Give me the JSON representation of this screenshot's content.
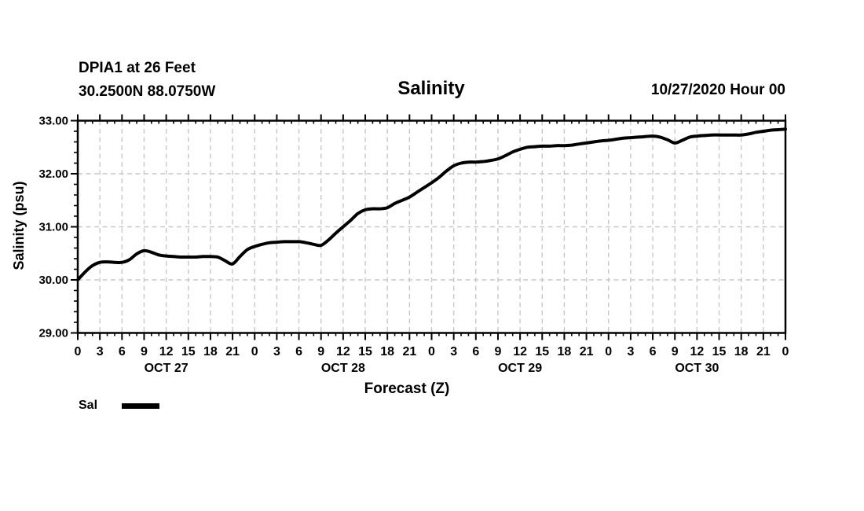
{
  "header": {
    "station_line1": "DPIA1 at 26 Feet",
    "station_line2": "30.2500N 88.0750W",
    "title": "Salinity",
    "datetime": "10/27/2020 Hour 00"
  },
  "legend": {
    "label": "Sal"
  },
  "chart_data": {
    "type": "line",
    "title": "Salinity",
    "xlabel": "Forecast (Z)",
    "ylabel": "Salinity (psu)",
    "ylim": [
      29.0,
      33.0
    ],
    "xlim_hours": [
      0,
      96
    ],
    "grid": "dashed",
    "grid_color": "#c8c8c8",
    "line_color": "#000000",
    "y_ticks": [
      {
        "value": 33.0,
        "label": "33.00"
      },
      {
        "value": 32.0,
        "label": "32.00"
      },
      {
        "value": 31.0,
        "label": "31.00"
      },
      {
        "value": 30.0,
        "label": "30.00"
      },
      {
        "value": 29.0,
        "label": "29.00"
      }
    ],
    "y_minor_step": 0.2,
    "x_major_step_hours": 3,
    "x_minor_step_hours": 1,
    "x_tick_labels": [
      "0",
      "3",
      "6",
      "9",
      "12",
      "15",
      "18",
      "21",
      "0",
      "3",
      "6",
      "9",
      "12",
      "15",
      "18",
      "21",
      "0",
      "3",
      "6",
      "9",
      "12",
      "15",
      "18",
      "21",
      "0",
      "3",
      "6",
      "9",
      "12",
      "15",
      "18",
      "21",
      "0"
    ],
    "day_labels": [
      {
        "label": "OCT 27",
        "hour": 12
      },
      {
        "label": "OCT 28",
        "hour": 36
      },
      {
        "label": "OCT 29",
        "hour": 60
      },
      {
        "label": "OCT 30",
        "hour": 84
      }
    ],
    "series": [
      {
        "name": "Sal",
        "x_start_hour": 0,
        "x_step_hours": 1,
        "values": [
          30.0,
          30.15,
          30.27,
          30.33,
          30.34,
          30.33,
          30.33,
          30.38,
          30.49,
          30.55,
          30.52,
          30.47,
          30.45,
          30.44,
          30.43,
          30.43,
          30.43,
          30.44,
          30.44,
          30.43,
          30.36,
          30.3,
          30.44,
          30.57,
          30.63,
          30.67,
          30.7,
          30.71,
          30.72,
          30.72,
          30.72,
          30.7,
          30.67,
          30.65,
          30.75,
          30.88,
          31.0,
          31.12,
          31.25,
          31.32,
          31.34,
          31.34,
          31.36,
          31.44,
          31.5,
          31.56,
          31.65,
          31.74,
          31.83,
          31.93,
          32.05,
          32.15,
          32.2,
          32.22,
          32.22,
          32.23,
          32.25,
          32.28,
          32.34,
          32.41,
          32.46,
          32.5,
          32.51,
          32.52,
          32.52,
          32.53,
          32.53,
          32.54,
          32.56,
          32.58,
          32.6,
          32.62,
          32.63,
          32.65,
          32.67,
          32.68,
          32.69,
          32.7,
          32.71,
          32.69,
          32.64,
          32.58,
          32.63,
          32.69,
          32.71,
          32.72,
          32.73,
          32.73,
          32.73,
          32.73,
          32.73,
          32.75,
          32.78,
          32.8,
          32.82,
          32.83,
          32.84
        ]
      }
    ]
  }
}
